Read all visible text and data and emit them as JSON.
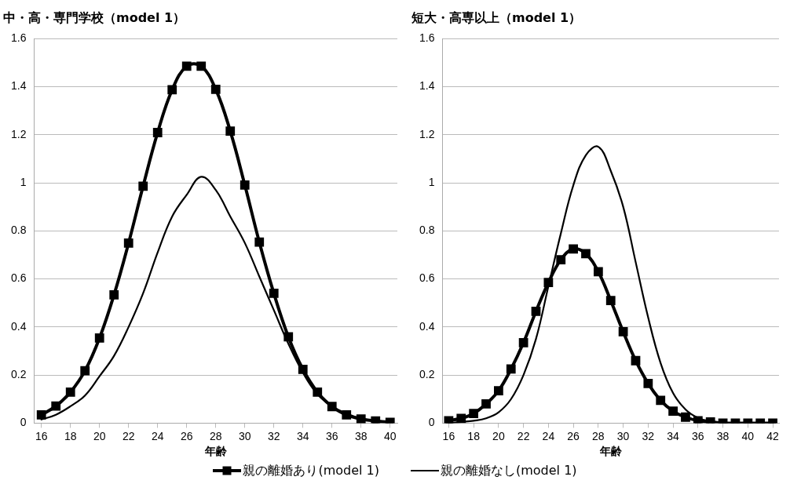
{
  "chart_data": [
    {
      "type": "line",
      "title": "中・高・専門学校（model 1）",
      "xlabel": "年齢",
      "xlim": [
        15.5,
        40.5
      ],
      "xticks": [
        16,
        18,
        20,
        22,
        24,
        26,
        28,
        30,
        32,
        34,
        36,
        38,
        40
      ],
      "ylim": [
        0,
        1.6
      ],
      "yticks": [
        0,
        0.2,
        0.4,
        0.6,
        0.8,
        1,
        1.2,
        1.4,
        1.6
      ],
      "grid": "y",
      "legend": "bottom",
      "x": [
        16,
        17,
        18,
        19,
        20,
        21,
        22,
        23,
        24,
        25,
        26,
        27,
        28,
        29,
        30,
        31,
        32,
        33,
        34,
        35,
        36,
        37,
        38,
        39,
        40
      ],
      "series": [
        {
          "name": "親の離婚あり(model 1)",
          "color": "#000000",
          "marker": "square",
          "values": [
            0.034,
            0.071,
            0.129,
            0.218,
            0.354,
            0.534,
            0.749,
            0.986,
            1.209,
            1.387,
            1.485,
            1.485,
            1.389,
            1.215,
            0.991,
            0.753,
            0.54,
            0.359,
            0.224,
            0.129,
            0.069,
            0.034,
            0.017,
            0.009,
            0.003
          ]
        },
        {
          "name": "親の離婚なし(model 1)",
          "color": "#000000",
          "marker": "none",
          "values": [
            0.015,
            0.035,
            0.07,
            0.115,
            0.195,
            0.28,
            0.4,
            0.54,
            0.71,
            0.86,
            0.95,
            1.025,
            0.97,
            0.86,
            0.75,
            0.61,
            0.47,
            0.33,
            0.21,
            0.12,
            0.07,
            0.04,
            0.02,
            0.01,
            0.005
          ]
        }
      ]
    },
    {
      "type": "line",
      "title": "短大・高専以上（model 1）",
      "xlabel": "年齢",
      "xlim": [
        15.5,
        42.5
      ],
      "xticks": [
        16,
        18,
        20,
        22,
        24,
        26,
        28,
        30,
        32,
        34,
        36,
        38,
        40,
        42
      ],
      "ylim": [
        0,
        1.6
      ],
      "yticks": [
        0,
        0.2,
        0.4,
        0.6,
        0.8,
        1,
        1.2,
        1.4,
        1.6
      ],
      "grid": "y",
      "x": [
        16,
        17,
        18,
        19,
        20,
        21,
        22,
        23,
        24,
        25,
        26,
        27,
        28,
        29,
        30,
        31,
        32,
        33,
        34,
        35,
        36,
        37,
        38,
        39,
        40,
        41,
        42
      ],
      "series": [
        {
          "color": "#000000",
          "marker": "square",
          "values": [
            0.01,
            0.02,
            0.04,
            0.08,
            0.135,
            0.225,
            0.335,
            0.465,
            0.585,
            0.68,
            0.725,
            0.705,
            0.63,
            0.51,
            0.38,
            0.26,
            0.165,
            0.095,
            0.05,
            0.025,
            0.01,
            0.005,
            0,
            0,
            0,
            0,
            0
          ]
        },
        {
          "color": "#000000",
          "marker": "none",
          "values": [
            0,
            0.005,
            0.01,
            0.02,
            0.045,
            0.1,
            0.2,
            0.35,
            0.57,
            0.79,
            0.99,
            1.115,
            1.15,
            1.05,
            0.9,
            0.67,
            0.44,
            0.25,
            0.125,
            0.057,
            0.022,
            0.008,
            0.002,
            0,
            0,
            0,
            0
          ]
        }
      ]
    }
  ]
}
